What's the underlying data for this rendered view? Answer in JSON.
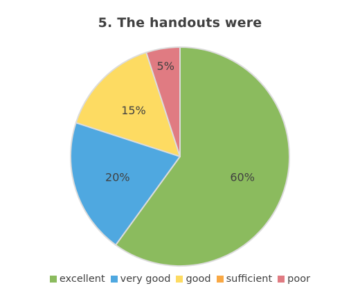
{
  "chart_data": {
    "type": "pie",
    "title": "5. The handouts were",
    "categories": [
      "excellent",
      "very good",
      "good",
      "sufficient",
      "poor"
    ],
    "values": [
      60,
      20,
      15,
      0,
      5
    ],
    "labels": [
      "60%",
      "20%",
      "15%",
      "",
      "5%"
    ],
    "colors": [
      "#8BBB5E",
      "#4FA8E0",
      "#FDDB62",
      "#F9A844",
      "#E07B82"
    ],
    "legend_position": "bottom",
    "start_angle_deg": 0,
    "direction": "clockwise"
  }
}
